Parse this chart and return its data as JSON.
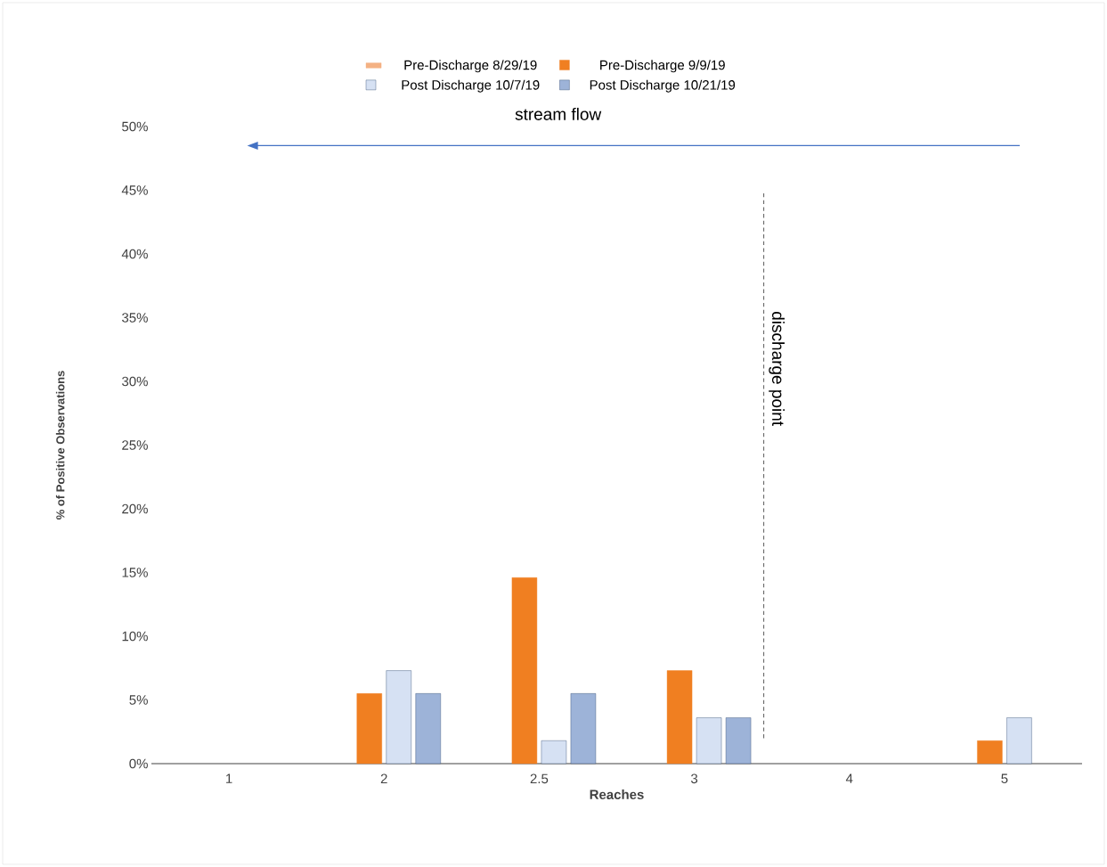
{
  "chart_data": {
    "type": "bar",
    "xlabel": "Reaches",
    "ylabel": "% of Positive Observations",
    "categories": [
      "1",
      "2",
      "2.5",
      "3",
      "4",
      "5"
    ],
    "series": [
      {
        "name": "Pre-Discharge 8/29/19",
        "color": "#f4b183",
        "values": [
          null,
          null,
          null,
          null,
          null,
          null
        ]
      },
      {
        "name": "Pre-Discharge 9/9/19",
        "color": "#f07f21",
        "values": [
          null,
          5.5,
          14.6,
          7.3,
          null,
          1.8
        ]
      },
      {
        "name": "Post Discharge 10/7/19",
        "color": "#d6e1f3",
        "values": [
          null,
          7.3,
          1.8,
          3.6,
          null,
          3.6
        ]
      },
      {
        "name": "Post Discharge 10/21/19",
        "color": "#9db3d8",
        "values": [
          null,
          5.5,
          5.5,
          3.6,
          null,
          null
        ]
      }
    ],
    "ylim": [
      0,
      50
    ],
    "yticks": [
      {
        "value": 0,
        "label": "0%"
      },
      {
        "value": 5,
        "label": "5%"
      },
      {
        "value": 10,
        "label": "10%"
      },
      {
        "value": 15,
        "label": "15%"
      },
      {
        "value": 20,
        "label": "20%"
      },
      {
        "value": 25,
        "label": "25%"
      },
      {
        "value": 30,
        "label": "30%"
      },
      {
        "value": 35,
        "label": "35%"
      },
      {
        "value": 40,
        "label": "40%"
      },
      {
        "value": 45,
        "label": "45%"
      },
      {
        "value": 50,
        "label": "50%"
      }
    ],
    "annotations": [
      "stream flow",
      "discharge point"
    ],
    "grid": false,
    "legend": "top"
  }
}
